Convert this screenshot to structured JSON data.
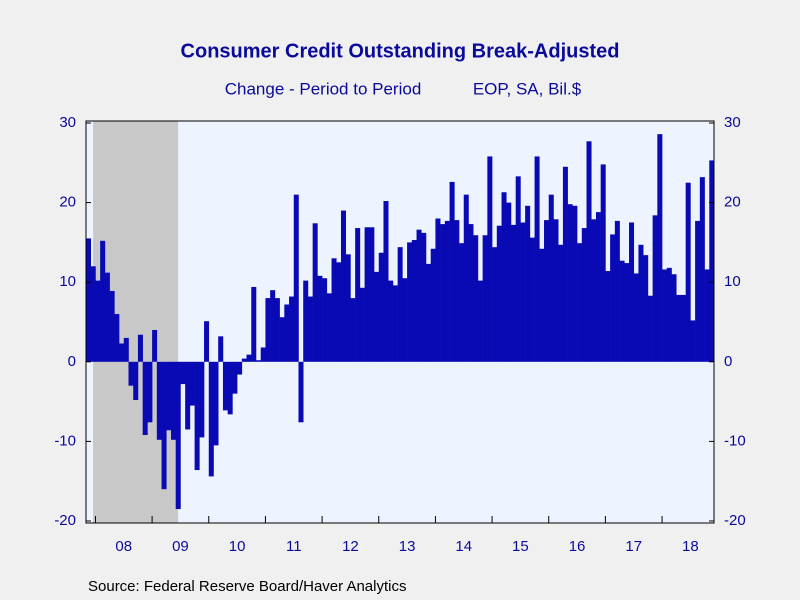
{
  "chart_data": {
    "type": "bar",
    "title": "Consumer Credit Outstanding Break-Adjusted",
    "subtitle": "Change - Period to Period",
    "units": "EOP, SA, Bil.$",
    "source": "Source:  Federal Reserve Board/Haver Analytics",
    "x_labels": [
      "08",
      "09",
      "10",
      "11",
      "12",
      "13",
      "14",
      "15",
      "16",
      "17",
      "18"
    ],
    "values": [
      15.5,
      12,
      10.2,
      15.2,
      11.2,
      8.9,
      6,
      2.3,
      3,
      -3,
      -4.8,
      3.4,
      -9.2,
      -7.6,
      4,
      -9.8,
      -16,
      -8.6,
      -9.8,
      -18.5,
      -2.8,
      -8.5,
      -5.5,
      -13.6,
      -9.5,
      5.1,
      -14.4,
      -10.5,
      3.2,
      -6.1,
      -6.6,
      -4,
      -1.6,
      0.4,
      0.9,
      9.4,
      0.2,
      1.8,
      8,
      9,
      8,
      5.6,
      7.2,
      8.2,
      21,
      -7.6,
      10.2,
      8.2,
      17.4,
      10.8,
      10.5,
      8.6,
      13,
      12.5,
      19,
      13.5,
      8,
      16.8,
      9.3,
      16.9,
      16.9,
      11.3,
      13.7,
      20.2,
      10.2,
      9.6,
      14.4,
      10.5,
      15,
      15.3,
      16.6,
      16.2,
      12.3,
      14.2,
      18,
      17.3,
      17.7,
      22.6,
      17.8,
      14.9,
      21,
      17.3,
      15.9,
      10.2,
      15.9,
      25.8,
      14.4,
      17.1,
      21.3,
      20,
      17.2,
      23.3,
      17.5,
      19.6,
      15.6,
      25.8,
      14.2,
      17.8,
      21,
      17.9,
      14.7,
      24.5,
      19.8,
      19.6,
      14.9,
      16.8,
      27.7,
      17.9,
      18.8,
      24.8,
      11.4,
      16,
      17.7,
      12.7,
      12.4,
      17.5,
      11.1,
      14.7,
      13.4,
      8.3,
      18.4,
      28.6,
      11.6,
      11.8,
      11,
      8.4,
      8.4,
      22.5,
      5.2,
      17.7,
      23.2,
      11.6,
      25.3
    ],
    "color": "#0a0ab4",
    "shade": [
      1.5,
      19.5
    ],
    "shade_color": "#c8c8c8",
    "ylim": [
      -20,
      30
    ],
    "yticks": [
      -20,
      -10,
      0,
      10,
      20,
      30
    ]
  }
}
